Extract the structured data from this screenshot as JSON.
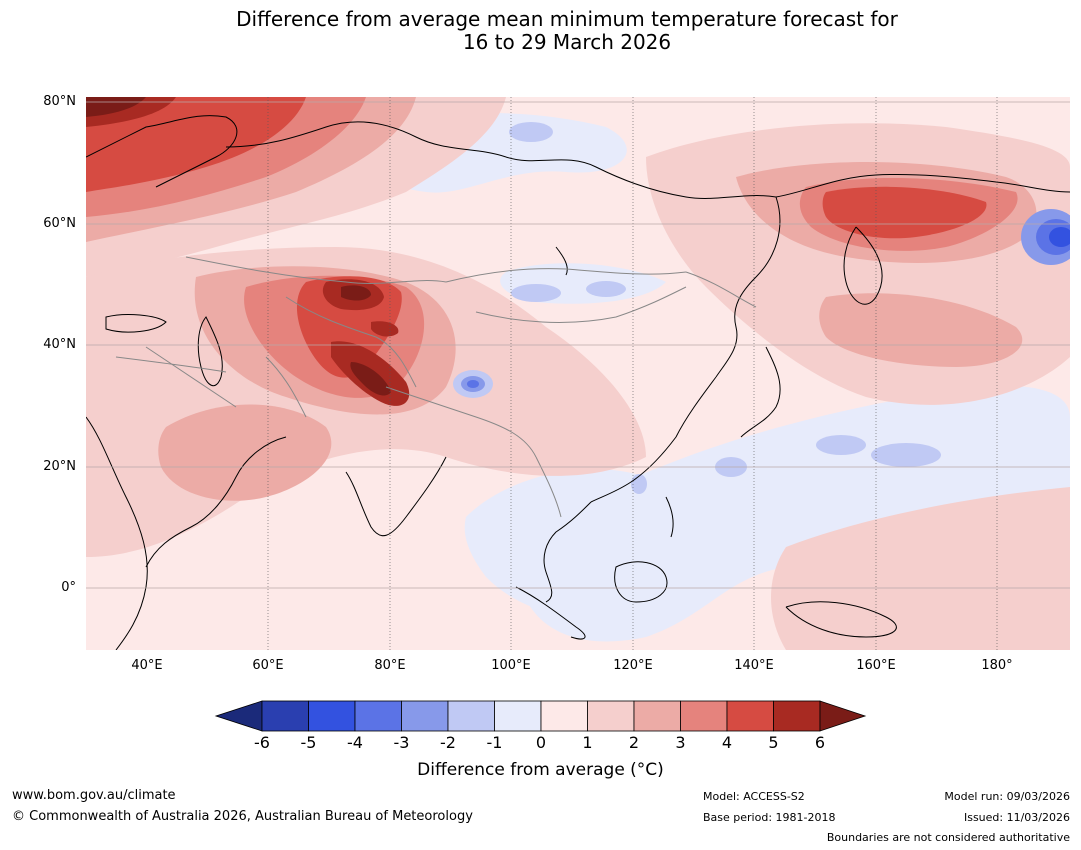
{
  "title_line1": "Difference from average mean minimum temperature forecast for",
  "title_line2": "16 to 29 March 2026",
  "map": {
    "lat_labels": [
      "80°N",
      "60°N",
      "40°N",
      "20°N",
      "0°"
    ],
    "lon_labels": [
      "40°E",
      "60°E",
      "80°E",
      "100°E",
      "120°E",
      "140°E",
      "160°E",
      "180°"
    ],
    "lon_range": [
      30,
      192
    ],
    "lat_range": [
      -10,
      81
    ],
    "region": "Asia and western Pacific"
  },
  "colorbar": {
    "ticks": [
      "-6",
      "-5",
      "-4",
      "-3",
      "-2",
      "-1",
      "0",
      "1",
      "2",
      "3",
      "4",
      "5",
      "6"
    ],
    "label": "Difference from average (°C)",
    "colors": [
      "#1b2a7a",
      "#2a3fb0",
      "#3352e0",
      "#5b73e6",
      "#8799ea",
      "#c0c9f4",
      "#e7ebfb",
      "#fde9e8",
      "#f5cfcd",
      "#ecaba6",
      "#e5837d",
      "#d64b42",
      "#a82a22",
      "#7a1c17"
    ]
  },
  "footer": {
    "url": "www.bom.gov.au/climate",
    "copyright": "© Commonwealth of Australia 2026, Australian Bureau of Meteorology",
    "model": "Model: ACCESS-S2",
    "base_period": "Base period: 1981-2018",
    "model_run": "Model run: 09/03/2026",
    "issued": "Issued: 11/03/2026",
    "disclaimer": "Boundaries are not considered authoritative"
  }
}
